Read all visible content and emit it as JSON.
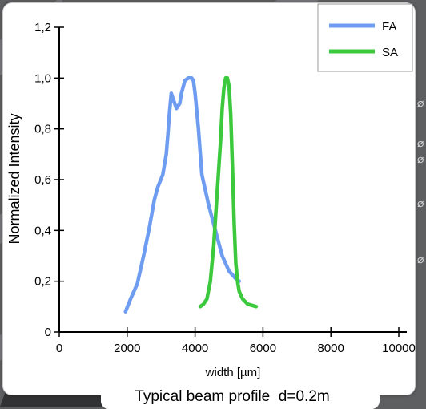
{
  "chart_data": {
    "type": "line",
    "title": "",
    "caption": "Typical beam profile  d=0.2m",
    "xlabel": "width [µm]",
    "ylabel": "Normalized Intensity",
    "xlim": [
      0,
      10000
    ],
    "ylim": [
      0,
      1.2
    ],
    "xticks": [
      "0",
      "2000",
      "4000",
      "6000",
      "8000",
      "10000"
    ],
    "yticks": [
      "0",
      "0,2",
      "0,4",
      "0,6",
      "0,8",
      "1,0",
      "1,2"
    ],
    "grid": false,
    "legend": "top-right",
    "series": [
      {
        "name": "FA",
        "color": "#6e9cf0",
        "x": [
          1950,
          2100,
          2300,
          2500,
          2650,
          2800,
          2900,
          3050,
          3150,
          3200,
          3250,
          3300,
          3350,
          3450,
          3550,
          3600,
          3700,
          3800,
          3850,
          3900,
          3950,
          4000,
          4100,
          4200,
          4300,
          4400,
          4600,
          4800,
          5000,
          5200,
          5300
        ],
        "y": [
          0.08,
          0.13,
          0.19,
          0.31,
          0.41,
          0.52,
          0.57,
          0.62,
          0.7,
          0.78,
          0.87,
          0.94,
          0.92,
          0.88,
          0.9,
          0.94,
          0.99,
          1.0,
          1.0,
          1.0,
          0.99,
          0.94,
          0.8,
          0.62,
          0.56,
          0.5,
          0.4,
          0.3,
          0.24,
          0.21,
          0.2
        ]
      },
      {
        "name": "SA",
        "color": "#3dc93d",
        "x": [
          4150,
          4250,
          4350,
          4450,
          4550,
          4650,
          4750,
          4800,
          4850,
          4900,
          4950,
          5000,
          5050,
          5100,
          5150,
          5200,
          5250,
          5300,
          5400,
          5550,
          5800
        ],
        "y": [
          0.1,
          0.11,
          0.13,
          0.2,
          0.34,
          0.55,
          0.75,
          0.88,
          0.96,
          1.0,
          1.0,
          0.97,
          0.86,
          0.66,
          0.43,
          0.27,
          0.2,
          0.16,
          0.13,
          0.11,
          0.1
        ]
      }
    ]
  },
  "side_glyphs": [
    "⌀",
    "⌀",
    "⌀",
    "⌀",
    "⌀"
  ]
}
